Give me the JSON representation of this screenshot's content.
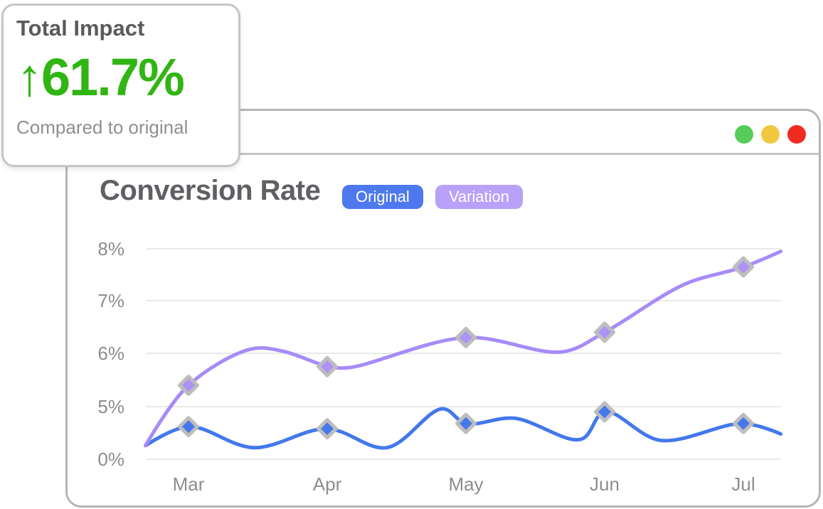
{
  "impact_card": {
    "title": "Total Impact",
    "arrow": "↑",
    "value": "61.7%",
    "value_color": "#30b513",
    "caption": "Compared to original"
  },
  "window": {
    "traffic_lights": [
      {
        "name": "green",
        "color": "#55cd58"
      },
      {
        "name": "yellow",
        "color": "#f1c83f"
      },
      {
        "name": "red",
        "color": "#f02b1f"
      }
    ]
  },
  "chart": {
    "title": "Conversion Rate",
    "legend": [
      {
        "label": "Original",
        "color": "#4e79ee"
      },
      {
        "label": "Variation",
        "color": "#b9a1f8"
      }
    ]
  },
  "chart_data": {
    "type": "line",
    "title": "Conversion Rate",
    "x_categories": [
      "Mar",
      "Apr",
      "May",
      "Jun",
      "Jul"
    ],
    "y_tick_labels": [
      "0%",
      "5%",
      "6%",
      "7%",
      "8%"
    ],
    "y_tick_values": [
      0,
      5,
      6,
      7,
      8
    ],
    "y_axis_note": "non-linear axis: 0% then 5%-8% with even tick spacing",
    "grid": true,
    "legend_position": "top",
    "grid_color": "#e9e9e9",
    "tick_label_color": "#8d8d8d",
    "marker_stroke_color": "#bdbdbd",
    "series": [
      {
        "name": "Original",
        "color": "#4378ec",
        "marker": "diamond",
        "marker_fill": "#4478eb",
        "values": [
          3.1,
          2.9,
          3.4,
          4.5,
          3.4
        ],
        "curve": [
          [
            -0.31,
            1.3
          ],
          [
            0,
            3.1
          ],
          [
            0.47,
            1.1
          ],
          [
            1,
            2.9
          ],
          [
            1.43,
            1.1
          ],
          [
            1.83,
            4.8
          ],
          [
            2,
            3.4
          ],
          [
            2.35,
            3.9
          ],
          [
            2.83,
            1.9
          ],
          [
            3,
            4.5
          ],
          [
            3.4,
            1.8
          ],
          [
            4,
            3.4
          ],
          [
            4.27,
            2.4
          ]
        ]
      },
      {
        "name": "Variation",
        "color": "#a78bf8",
        "marker": "diamond",
        "marker_fill": "#ad92f7",
        "values": [
          5.4,
          5.75,
          6.3,
          6.4,
          7.65
        ],
        "curve": [
          [
            -0.31,
            1.3
          ],
          [
            0,
            5.4
          ],
          [
            0.45,
            6.08
          ],
          [
            0.68,
            6.04
          ],
          [
            1,
            5.76
          ],
          [
            1.15,
            5.73
          ],
          [
            2,
            6.3
          ],
          [
            2.7,
            6.03
          ],
          [
            3,
            6.4
          ],
          [
            3.58,
            7.32
          ],
          [
            4,
            7.65
          ],
          [
            4.27,
            7.95
          ]
        ]
      }
    ]
  }
}
